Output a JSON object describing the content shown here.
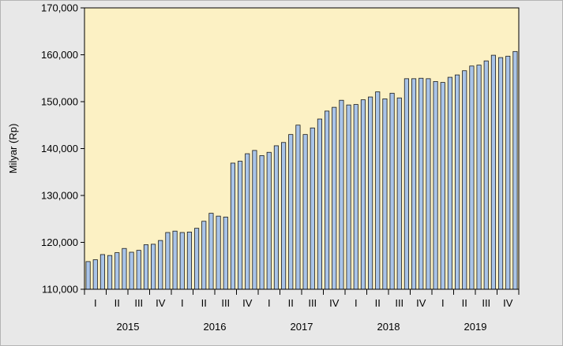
{
  "chart_data": {
    "type": "bar",
    "ylabel": "Milyar (Rp)",
    "xlabel": "",
    "title": "",
    "ylim": [
      110000,
      170000
    ],
    "yticks": [
      110000,
      120000,
      130000,
      140000,
      150000,
      160000,
      170000
    ],
    "ytick_labels": [
      "110,000",
      "120,000",
      "130,000",
      "140,000",
      "150,000",
      "160,000",
      "170,000"
    ],
    "years": [
      "2015",
      "2016",
      "2017",
      "2018",
      "2019"
    ],
    "quarter_labels": [
      "I",
      "II",
      "III",
      "IV"
    ],
    "months_per_quarter": 3,
    "grid": false,
    "legend": "none",
    "values": [
      115900,
      116300,
      117400,
      117200,
      117800,
      118700,
      117900,
      118300,
      119500,
      119600,
      120400,
      122100,
      122400,
      122100,
      122200,
      123000,
      124500,
      126200,
      125600,
      125400,
      136900,
      137300,
      138900,
      139600,
      138500,
      139200,
      140600,
      141300,
      143000,
      145000,
      143000,
      144400,
      146300,
      148000,
      148800,
      150300,
      149300,
      149400,
      150400,
      151000,
      152100,
      150600,
      151800,
      150800,
      154900,
      154900,
      155000,
      154900,
      154300,
      154100,
      155200,
      155700,
      156600,
      157600,
      157800,
      158700,
      159900,
      159400,
      159700,
      160700
    ]
  },
  "colors": {
    "plot_bg": "#fcf1c4",
    "bar_fill": "#a9c4e8",
    "bar_stroke": "#1a1a1a",
    "frame": "#000000",
    "outer_bg": "#e8e8e8"
  }
}
